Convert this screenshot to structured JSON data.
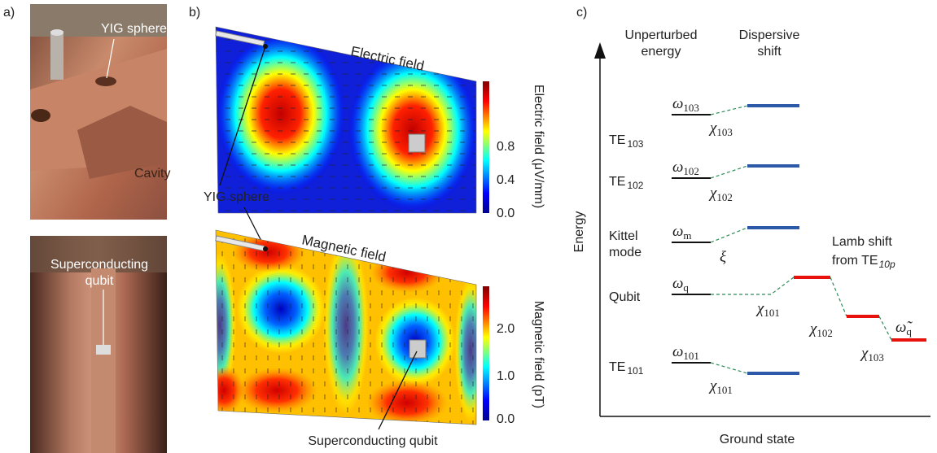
{
  "panel_a": {
    "label": "a)",
    "yig_label": "YIG sphere",
    "cavity_label": "Cavity",
    "qubit_label": [
      "Superconducting",
      "qubit"
    ]
  },
  "panel_b": {
    "label": "b)",
    "electric": {
      "title": "Electric field",
      "colorbar_label": "Electric field (μV/mm)",
      "colorbar_ticks": [
        "0.8",
        "0.4",
        "0.0"
      ]
    },
    "yig_label": "YIG sphere",
    "magnetic": {
      "title": "Magnetic field",
      "colorbar_label": "Magnetic field (pT)",
      "colorbar_ticks": [
        "2.0",
        "1.0",
        "0.0"
      ]
    },
    "qubit_label": "Superconducting qubit"
  },
  "panel_c": {
    "label": "c)",
    "column_headers": [
      [
        "Unperturbed",
        "energy"
      ],
      [
        "Dispersive",
        "shift"
      ]
    ],
    "y_axis": "Energy",
    "x_axis": "Ground state",
    "levels": [
      {
        "name": [
          "TE"
        ],
        "sub": "103",
        "omega": "ω",
        "omega_sub": "103",
        "shift": "χ",
        "shift_sub": "103"
      },
      {
        "name": [
          "TE"
        ],
        "sub": "102",
        "omega": "ω",
        "omega_sub": "102",
        "shift": "χ",
        "shift_sub": "102"
      },
      {
        "name": [
          "Kittel",
          "mode"
        ],
        "omega": "ω",
        "omega_sub": "m",
        "shift": "ξ"
      },
      {
        "name": [
          "Qubit"
        ],
        "omega": "ω",
        "omega_sub": "q",
        "shift": "χ",
        "shift_sub": "101"
      },
      {
        "name": [
          "TE"
        ],
        "sub": "101",
        "omega": "ω",
        "omega_sub": "101",
        "shift": "χ",
        "shift_sub": "101"
      }
    ],
    "lamb_shift": {
      "lines": [
        "Lamb shift",
        "from TE"
      ],
      "sub": "10p"
    },
    "qubit_shifts": [
      {
        "symbol": "χ",
        "sub": "102"
      },
      {
        "symbol": "χ",
        "sub": "103"
      }
    ],
    "final": {
      "symbol": "ω̃",
      "sub": "q"
    }
  }
}
